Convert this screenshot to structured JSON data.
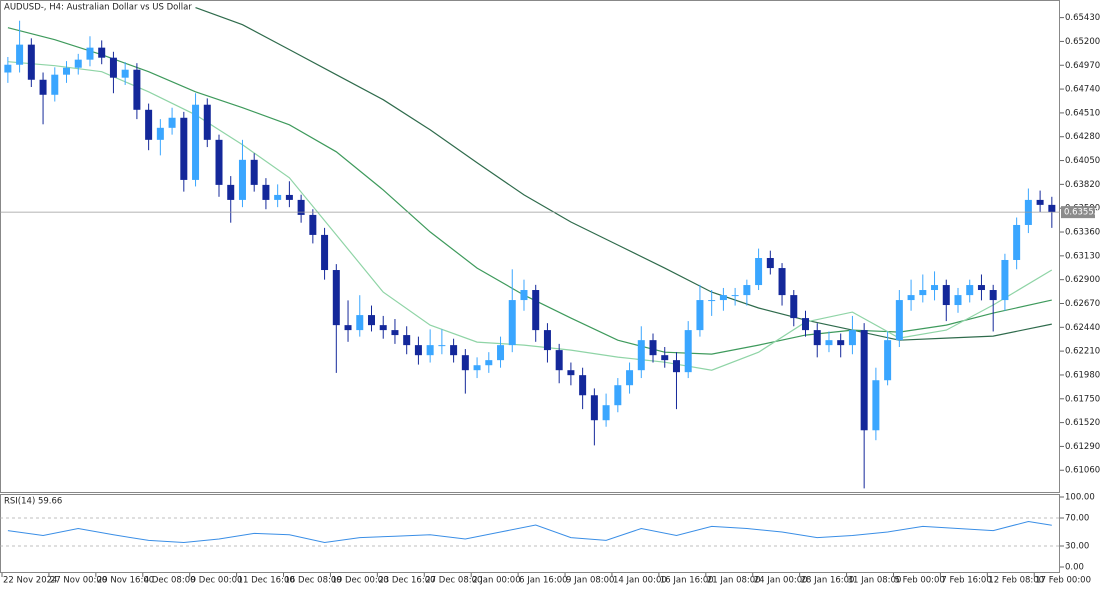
{
  "chart_data": {
    "type": "candlestick",
    "title": "AUDUSD-, H4:  Australian Dollar vs US Dollar",
    "categories": [
      "22 Nov 2024",
      null,
      null,
      null,
      "27 Nov 00:00",
      null,
      null,
      null,
      "29 Nov 16:00",
      null,
      null,
      null,
      "4 Dec 08:00",
      null,
      null,
      null,
      "9 Dec 00:00",
      null,
      null,
      null,
      "11 Dec 16:00",
      null,
      null,
      null,
      "16 Dec 08:00",
      null,
      null,
      null,
      "19 Dec 00:00",
      null,
      null,
      null,
      "23 Dec 16:00",
      null,
      null,
      null,
      "27 Dec 08:00",
      null,
      null,
      null,
      "2 Jan 00:00",
      null,
      null,
      null,
      "6 Jan 16:00",
      null,
      null,
      null,
      "9 Jan 08:00",
      null,
      null,
      null,
      "14 Jan 00:00",
      null,
      null,
      null,
      "16 Jan 16:00",
      null,
      null,
      null,
      "21 Jan 08:00",
      null,
      null,
      null,
      "24 Jan 00:00",
      null,
      null,
      null,
      "28 Jan 16:00",
      null,
      null,
      null,
      "31 Jan 08:00",
      null,
      null,
      null,
      "5 Feb 00:00",
      null,
      null,
      null,
      "7 Feb 16:00",
      null,
      null,
      null,
      "12 Feb 08:00",
      null,
      null,
      null,
      "17 Feb 00:00",
      null
    ],
    "open": [
      0.649,
      0.64975,
      0.65169,
      0.6483,
      0.64685,
      0.64879,
      0.64946,
      0.65024,
      0.6514,
      0.65043,
      0.6485,
      0.64927,
      0.6454,
      0.6425,
      0.64366,
      0.64463,
      0.63863,
      0.64589,
      0.6425,
      0.63815,
      0.6367,
      0.64057,
      0.63815,
      0.6367,
      0.63718,
      0.6367,
      0.63525,
      0.63332,
      0.62993,
      0.62461,
      0.62413,
      0.62558,
      0.62461,
      0.62413,
      0.62365,
      0.62268,
      0.62171,
      0.62268,
      0.62268,
      0.62171,
      0.62026,
      0.62074,
      0.62123,
      0.62268,
      0.62703,
      0.628,
      0.62413,
      0.6222,
      0.62026,
      0.61978,
      0.61784,
      0.61543,
      0.61688,
      0.61881,
      0.62026,
      0.62316,
      0.62171,
      0.62123,
      0.62007,
      0.62413,
      0.62703,
      0.62703,
      0.62751,
      0.62751,
      0.62848,
      0.63109,
      0.63012,
      0.62751,
      0.62529,
      0.62413,
      0.62268,
      0.62316,
      0.62268,
      0.62413,
      0.61446,
      0.61929,
      0.62316,
      0.62703,
      0.62751,
      0.628,
      0.62848,
      0.62655,
      0.62751,
      0.62848,
      0.628,
      0.62703,
      0.6309,
      0.63428,
      0.6367,
      0.63622
    ],
    "high": [
      0.6505,
      0.654,
      0.6523,
      0.649,
      0.6495,
      0.6501,
      0.6508,
      0.6525,
      0.6521,
      0.651,
      0.65,
      0.6499,
      0.646,
      0.6445,
      0.6456,
      0.6452,
      0.647,
      0.6465,
      0.643,
      0.639,
      0.6425,
      0.6412,
      0.6388,
      0.6382,
      0.6385,
      0.6372,
      0.6358,
      0.634,
      0.6305,
      0.627,
      0.6275,
      0.6265,
      0.6255,
      0.6252,
      0.6245,
      0.6235,
      0.6242,
      0.6242,
      0.6233,
      0.6223,
      0.6215,
      0.622,
      0.6235,
      0.63,
      0.629,
      0.6285,
      0.6248,
      0.6228,
      0.621,
      0.6205,
      0.6185,
      0.618,
      0.6195,
      0.621,
      0.6245,
      0.6238,
      0.6225,
      0.622,
      0.625,
      0.6285,
      0.628,
      0.6282,
      0.6282,
      0.629,
      0.632,
      0.6318,
      0.6306,
      0.628,
      0.626,
      0.6248,
      0.624,
      0.6238,
      0.6255,
      0.6248,
      0.6205,
      0.624,
      0.628,
      0.629,
      0.6295,
      0.6298,
      0.629,
      0.6282,
      0.629,
      0.6295,
      0.6285,
      0.6315,
      0.635,
      0.6378,
      0.6376,
      0.637
    ],
    "low": [
      0.648,
      0.649,
      0.6476,
      0.644,
      0.6462,
      0.648,
      0.6488,
      0.6496,
      0.6498,
      0.647,
      0.6478,
      0.6445,
      0.6415,
      0.641,
      0.643,
      0.6375,
      0.638,
      0.6418,
      0.637,
      0.6345,
      0.636,
      0.6375,
      0.6358,
      0.636,
      0.636,
      0.6345,
      0.6325,
      0.629,
      0.62,
      0.623,
      0.6235,
      0.624,
      0.6233,
      0.6228,
      0.6218,
      0.6208,
      0.621,
      0.6218,
      0.621,
      0.618,
      0.6195,
      0.62,
      0.6205,
      0.622,
      0.626,
      0.623,
      0.621,
      0.619,
      0.6188,
      0.6165,
      0.613,
      0.6148,
      0.6162,
      0.618,
      0.6195,
      0.621,
      0.6205,
      0.6165,
      0.6195,
      0.6235,
      0.6255,
      0.626,
      0.6265,
      0.6265,
      0.628,
      0.6295,
      0.6265,
      0.6245,
      0.6235,
      0.6215,
      0.622,
      0.6215,
      0.6218,
      0.60885,
      0.6135,
      0.6188,
      0.6225,
      0.626,
      0.6268,
      0.627,
      0.625,
      0.6258,
      0.6268,
      0.627,
      0.624,
      0.626,
      0.63,
      0.6335,
      0.6355,
      0.634
    ],
    "close": [
      0.64975,
      0.65169,
      0.6483,
      0.64685,
      0.64879,
      0.64946,
      0.65024,
      0.6514,
      0.65043,
      0.6485,
      0.64927,
      0.6454,
      0.6425,
      0.64366,
      0.64463,
      0.63863,
      0.64589,
      0.6425,
      0.63815,
      0.6367,
      0.64057,
      0.63815,
      0.6367,
      0.63718,
      0.6367,
      0.63525,
      0.63332,
      0.62993,
      0.62461,
      0.62413,
      0.62558,
      0.62461,
      0.62413,
      0.62365,
      0.62268,
      0.62171,
      0.62268,
      0.62268,
      0.62171,
      0.62026,
      0.62074,
      0.62123,
      0.62268,
      0.62703,
      0.628,
      0.62413,
      0.6222,
      0.62026,
      0.61978,
      0.61784,
      0.61543,
      0.61688,
      0.61881,
      0.62026,
      0.62316,
      0.62171,
      0.62123,
      0.62007,
      0.62413,
      0.62703,
      0.62703,
      0.62751,
      0.62751,
      0.62848,
      0.63109,
      0.63012,
      0.62751,
      0.62529,
      0.62413,
      0.62268,
      0.62316,
      0.62268,
      0.62413,
      0.61446,
      0.61929,
      0.62316,
      0.62703,
      0.62751,
      0.628,
      0.62848,
      0.62655,
      0.62751,
      0.62848,
      0.628,
      0.62703,
      0.6309,
      0.63428,
      0.6367,
      0.63622,
      0.63552
    ],
    "up_color": "#3aa6ff",
    "down_color": "#14289a",
    "ylim": [
      0.6085,
      0.656
    ],
    "yticks": [
      {
        "value": 0.6543,
        "label": "0.65430"
      },
      {
        "value": 0.652,
        "label": "0.65200"
      },
      {
        "value": 0.6497,
        "label": "0.64970"
      },
      {
        "value": 0.6474,
        "label": "0.64740"
      },
      {
        "value": 0.6451,
        "label": "0.64510"
      },
      {
        "value": 0.6428,
        "label": "0.64280"
      },
      {
        "value": 0.6405,
        "label": "0.64050"
      },
      {
        "value": 0.6382,
        "label": "0.63820"
      },
      {
        "value": 0.6359,
        "label": "0.63590"
      },
      {
        "value": 0.6336,
        "label": "0.63360"
      },
      {
        "value": 0.6313,
        "label": "0.63130"
      },
      {
        "value": 0.629,
        "label": "0.62900"
      },
      {
        "value": 0.6267,
        "label": "0.62670"
      },
      {
        "value": 0.6244,
        "label": "0.62440"
      },
      {
        "value": 0.6221,
        "label": "0.62210"
      },
      {
        "value": 0.6198,
        "label": "0.61980"
      },
      {
        "value": 0.6175,
        "label": "0.61750"
      },
      {
        "value": 0.6152,
        "label": "0.61520"
      },
      {
        "value": 0.6129,
        "label": "0.61290"
      },
      {
        "value": 0.6106,
        "label": "0.61060"
      }
    ],
    "current_price": 0.63552,
    "series": [
      {
        "color": "#2f6b4c",
        "x": [
          0,
          4,
          8,
          12,
          16,
          20,
          24,
          28,
          32,
          36,
          40,
          44,
          48,
          52,
          56,
          60,
          64,
          68,
          72,
          76,
          80,
          84,
          89
        ],
        "values": [
          null,
          null,
          null,
          null,
          0.65527,
          0.65362,
          0.65121,
          0.64879,
          0.64637,
          0.64347,
          0.64028,
          0.63718,
          0.63457,
          0.63235,
          0.63012,
          0.6278,
          0.62626,
          0.6251,
          0.62413,
          0.62316,
          0.62336,
          0.62355,
          0.62471
        ]
      },
      {
        "color": "#3e9a5c",
        "x": [
          0,
          4,
          8,
          12,
          16,
          20,
          24,
          28,
          32,
          36,
          40,
          44,
          48,
          52,
          56,
          60,
          64,
          68,
          72,
          76,
          80,
          84,
          89
        ],
        "values": [
          0.65333,
          0.65217,
          0.65072,
          0.64908,
          0.64714,
          0.6456,
          0.64395,
          0.64134,
          0.63767,
          0.63361,
          0.63012,
          0.62751,
          0.62529,
          0.62316,
          0.622,
          0.62181,
          0.62268,
          0.62365,
          0.62413,
          0.62394,
          0.62461,
          0.62577,
          0.62703
        ]
      },
      {
        "color": "#8fd4a6",
        "x": [
          0,
          4,
          8,
          12,
          16,
          20,
          24,
          28,
          32,
          36,
          40,
          44,
          48,
          52,
          56,
          60,
          64,
          68,
          72,
          76,
          80,
          84,
          89
        ],
        "values": [
          0.65004,
          0.64966,
          0.64908,
          0.64714,
          0.64492,
          0.64202,
          0.63883,
          0.63332,
          0.6278,
          0.62461,
          0.62297,
          0.62268,
          0.6222,
          0.62152,
          0.62103,
          0.62026,
          0.622,
          0.6249,
          0.62587,
          0.62336,
          0.62413,
          0.62655,
          0.62993
        ]
      }
    ],
    "rsi": {
      "title": "RSI(14) 59.66",
      "color": "#3a8ee6",
      "x": [
        0,
        3,
        6,
        9,
        12,
        15,
        18,
        21,
        24,
        27,
        30,
        33,
        36,
        39,
        42,
        45,
        48,
        51,
        54,
        57,
        60,
        63,
        66,
        69,
        72,
        75,
        78,
        81,
        84,
        87,
        89
      ],
      "values": [
        52,
        45,
        55,
        46,
        38,
        35,
        40,
        48,
        46,
        35,
        42,
        44,
        46,
        40,
        50,
        60,
        42,
        38,
        55,
        45,
        58,
        55,
        50,
        42,
        45,
        50,
        58,
        55,
        52,
        65,
        59.66
      ],
      "ylim": [
        0,
        100
      ],
      "yticks": [
        {
          "value": 100,
          "label": "100.00"
        },
        {
          "value": 70,
          "label": "70.00"
        },
        {
          "value": 30,
          "label": "30.00"
        },
        {
          "value": 0,
          "label": "0.00"
        }
      ]
    }
  }
}
